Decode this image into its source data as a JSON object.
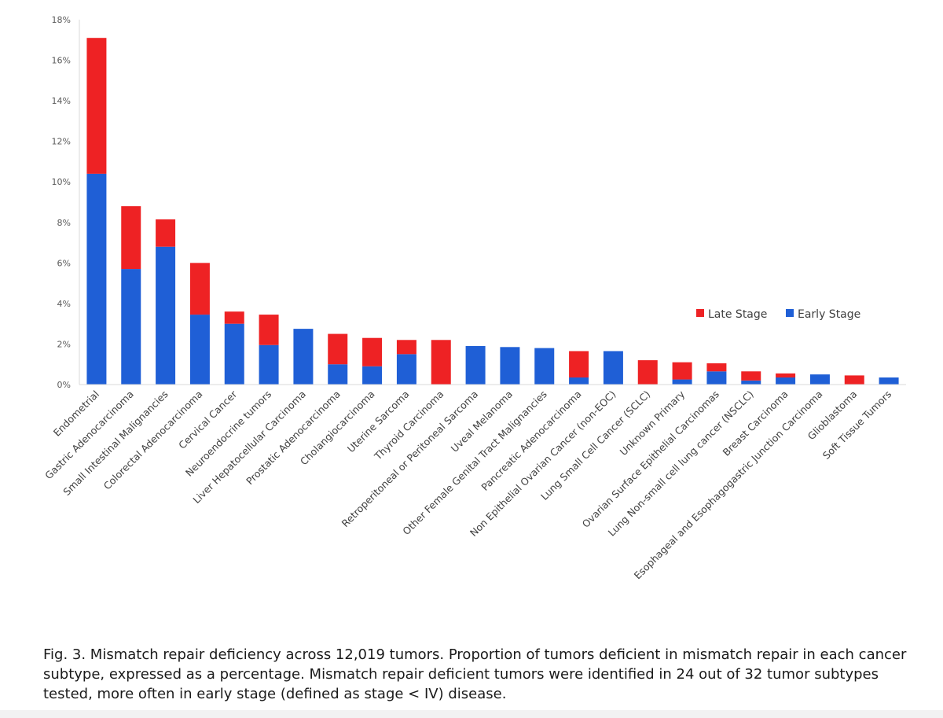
{
  "chart_data": {
    "type": "bar",
    "stacked": true,
    "categories": [
      "Endometrial",
      "Gastric Adenocarcinoma",
      "Small Intestinal Malignancies",
      "Colorectal Adenocarcinoma",
      "Cervical Cancer",
      "Neuroendocrine tumors",
      "Liver Hepatocellular Carcinoma",
      "Prostatic Adenocarcinoma",
      "Cholangiocarcinoma",
      "Uterine Sarcoma",
      "Thyroid Carcinoma",
      "Retroperitoneal or Peritoneal Sarcoma",
      "Uveal Melanoma",
      "Other Female Genital Tract Malignancies",
      "Pancreatic Adenocarcinoma",
      "Non Epithelial Ovarian Cancer (non-EOC)",
      "Lung Small Cell Cancer (SCLC)",
      "Unknown Primary",
      "Ovarian Surface Epithelial Carcinomas",
      "Lung Non-small cell lung cancer (NSCLC)",
      "Breast Carcinoma",
      "Esophageal and Esophagogastric Junction Carcinoma",
      "Glioblastoma",
      "Soft Tissue Tumors"
    ],
    "series": [
      {
        "name": "Early Stage",
        "color": "#1f5fd6",
        "values": [
          10.4,
          5.7,
          6.8,
          3.45,
          3.0,
          1.95,
          2.75,
          1.0,
          0.9,
          1.5,
          0.0,
          1.9,
          1.85,
          1.8,
          0.35,
          1.65,
          0.0,
          0.25,
          0.65,
          0.2,
          0.35,
          0.5,
          0.0,
          0.35
        ]
      },
      {
        "name": "Late Stage",
        "color": "#ee2224",
        "values": [
          6.7,
          3.1,
          1.35,
          2.55,
          0.6,
          1.5,
          0.0,
          1.5,
          1.4,
          0.7,
          2.2,
          0.0,
          0.0,
          0.0,
          1.3,
          0.0,
          1.2,
          0.85,
          0.4,
          0.45,
          0.2,
          0.0,
          0.45,
          0.0
        ]
      }
    ],
    "yticks": [
      "0%",
      "2%",
      "4%",
      "6%",
      "8%",
      "10%",
      "12%",
      "14%",
      "16%",
      "18%"
    ],
    "ylim": [
      0,
      18
    ],
    "legend": [
      "Late Stage",
      "Early Stage"
    ],
    "legend_position": "right",
    "grid": false
  },
  "caption": {
    "lead": "Fig. 3. Mismatch repair deficiency across 12,019 tumors.",
    "text": "Proportion of tumors deficient in mismatch repair in each cancer subtype, expressed as a percentage. Mismatch repair deficient tumors were identified in 24 out of 32 tumor subtypes tested, more often in early stage (defined as stage < IV) disease."
  }
}
